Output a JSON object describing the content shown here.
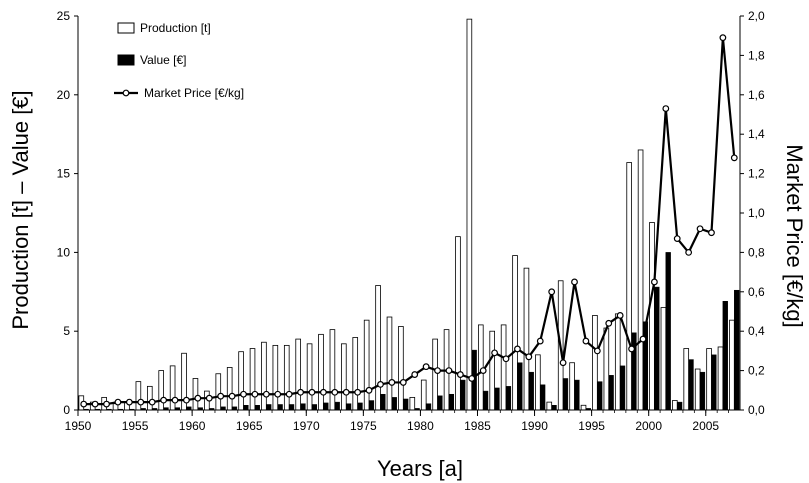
{
  "chart_data": {
    "type": "bar",
    "xlabel": "Years [a]",
    "ylabel": "Production [t] – Value [€]",
    "y2label": "Market Price [€/kg]",
    "xlim": [
      1950,
      2007
    ],
    "ylim": [
      0,
      25
    ],
    "y2lim": [
      0,
      2.0
    ],
    "x_ticks": [
      1950,
      1955,
      1960,
      1965,
      1970,
      1975,
      1980,
      1985,
      1990,
      1995,
      2000,
      2005
    ],
    "y_ticks": [
      0,
      5,
      10,
      15,
      20,
      25
    ],
    "y2_ticks": [
      "0,0",
      "0,2",
      "0,4",
      "0,6",
      "0,8",
      "1,0",
      "1,2",
      "1,4",
      "1,6",
      "1,8",
      "2,0"
    ],
    "years": [
      1950,
      1951,
      1952,
      1953,
      1954,
      1955,
      1956,
      1957,
      1958,
      1959,
      1960,
      1961,
      1962,
      1963,
      1964,
      1965,
      1966,
      1967,
      1968,
      1969,
      1970,
      1971,
      1972,
      1973,
      1974,
      1975,
      1976,
      1977,
      1978,
      1979,
      1980,
      1981,
      1982,
      1983,
      1984,
      1985,
      1986,
      1987,
      1988,
      1989,
      1990,
      1991,
      1992,
      1993,
      1994,
      1995,
      1996,
      1997,
      1998,
      1999,
      2000,
      2001,
      2002,
      2003,
      2004,
      2005,
      2006,
      2007
    ],
    "series": [
      {
        "name": "Production [t]",
        "kind": "bar",
        "color": "#ffffff",
        "values": [
          0.9,
          0.5,
          0.8,
          0.4,
          0.5,
          1.8,
          1.5,
          2.5,
          2.8,
          3.6,
          2.0,
          1.2,
          2.3,
          2.7,
          3.7,
          3.9,
          4.3,
          4.1,
          4.1,
          4.5,
          4.2,
          4.8,
          5.1,
          4.2,
          4.6,
          5.7,
          7.9,
          5.9,
          5.3,
          0.8,
          1.9,
          4.5,
          5.1,
          11.0,
          24.8,
          5.4,
          5.0,
          5.4,
          9.8,
          9.0,
          3.5,
          0.5,
          8.2,
          3.0,
          0.3,
          6.0,
          5.2,
          6.1,
          15.7,
          16.5,
          11.9,
          6.5,
          0.6,
          3.9,
          2.6,
          3.9,
          4.0,
          5.7
        ]
      },
      {
        "name": "Value [€]",
        "kind": "bar",
        "color": "#000000",
        "values": [
          0.05,
          0.05,
          0.05,
          0.05,
          0.05,
          0.1,
          0.1,
          0.15,
          0.15,
          0.2,
          0.15,
          0.1,
          0.2,
          0.2,
          0.3,
          0.3,
          0.35,
          0.35,
          0.35,
          0.4,
          0.35,
          0.45,
          0.5,
          0.4,
          0.45,
          0.6,
          1.0,
          0.8,
          0.7,
          0.1,
          0.4,
          0.9,
          1.0,
          1.9,
          3.8,
          1.2,
          1.4,
          1.5,
          3.0,
          2.4,
          1.6,
          0.3,
          2.0,
          1.9,
          0.1,
          1.8,
          2.2,
          2.8,
          4.9,
          5.6,
          7.8,
          10.0,
          0.5,
          3.2,
          2.4,
          3.5,
          6.9,
          7.6
        ]
      },
      {
        "name": "Market Price [€/kg]",
        "kind": "line",
        "color": "#000000",
        "values": [
          0.03,
          0.03,
          0.03,
          0.04,
          0.04,
          0.04,
          0.04,
          0.05,
          0.05,
          0.05,
          0.06,
          0.06,
          0.07,
          0.07,
          0.08,
          0.08,
          0.08,
          0.08,
          0.08,
          0.09,
          0.09,
          0.09,
          0.09,
          0.09,
          0.09,
          0.1,
          0.13,
          0.14,
          0.14,
          0.18,
          0.22,
          0.2,
          0.2,
          0.18,
          0.16,
          0.2,
          0.29,
          0.26,
          0.31,
          0.27,
          0.35,
          0.6,
          0.24,
          0.65,
          0.35,
          0.3,
          0.44,
          0.48,
          0.31,
          0.36,
          0.65,
          1.53,
          0.87,
          0.8,
          0.92,
          0.9,
          1.89,
          1.28
        ]
      }
    ],
    "legend": "top-left",
    "grid": false
  }
}
